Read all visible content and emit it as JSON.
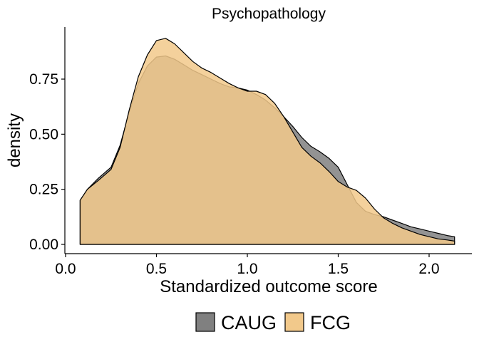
{
  "chart_data": {
    "type": "area",
    "title": "Psychopathology",
    "xlabel": "Standardized outcome score",
    "ylabel": "density",
    "xlim": [
      0,
      2.25
    ],
    "ylim": [
      0,
      0.95
    ],
    "x_ticks": [
      "0.0",
      "0.5",
      "1.0",
      "1.5",
      "2.0"
    ],
    "x_tick_values": [
      0,
      0.5,
      1.0,
      1.5,
      2.0
    ],
    "y_ticks": [
      "0.00",
      "0.25",
      "0.50",
      "0.75"
    ],
    "y_tick_values": [
      0,
      0.25,
      0.5,
      0.75
    ],
    "grid": false,
    "legend_position": "bottom",
    "series": [
      {
        "name": "CAUG",
        "color": "#808080",
        "points": [
          [
            0.08,
            0.2
          ],
          [
            0.12,
            0.25
          ],
          [
            0.18,
            0.3
          ],
          [
            0.25,
            0.35
          ],
          [
            0.3,
            0.45
          ],
          [
            0.35,
            0.6
          ],
          [
            0.4,
            0.73
          ],
          [
            0.45,
            0.81
          ],
          [
            0.5,
            0.85
          ],
          [
            0.55,
            0.855
          ],
          [
            0.6,
            0.84
          ],
          [
            0.65,
            0.815
          ],
          [
            0.7,
            0.79
          ],
          [
            0.75,
            0.77
          ],
          [
            0.8,
            0.75
          ],
          [
            0.85,
            0.73
          ],
          [
            0.9,
            0.715
          ],
          [
            0.95,
            0.71
          ],
          [
            1.0,
            0.7
          ],
          [
            1.05,
            0.68
          ],
          [
            1.1,
            0.655
          ],
          [
            1.15,
            0.62
          ],
          [
            1.2,
            0.58
          ],
          [
            1.25,
            0.535
          ],
          [
            1.3,
            0.485
          ],
          [
            1.35,
            0.445
          ],
          [
            1.4,
            0.42
          ],
          [
            1.45,
            0.39
          ],
          [
            1.5,
            0.35
          ],
          [
            1.55,
            0.27
          ],
          [
            1.6,
            0.19
          ],
          [
            1.65,
            0.15
          ],
          [
            1.7,
            0.135
          ],
          [
            1.75,
            0.125
          ],
          [
            1.8,
            0.11
          ],
          [
            1.85,
            0.095
          ],
          [
            1.9,
            0.08
          ],
          [
            1.95,
            0.07
          ],
          [
            2.0,
            0.06
          ],
          [
            2.05,
            0.05
          ],
          [
            2.1,
            0.04
          ],
          [
            2.14,
            0.035
          ]
        ]
      },
      {
        "name": "FCG",
        "color": "#F2C98B",
        "points": [
          [
            0.08,
            0.2
          ],
          [
            0.12,
            0.25
          ],
          [
            0.18,
            0.29
          ],
          [
            0.25,
            0.34
          ],
          [
            0.3,
            0.44
          ],
          [
            0.35,
            0.61
          ],
          [
            0.4,
            0.76
          ],
          [
            0.45,
            0.86
          ],
          [
            0.5,
            0.925
          ],
          [
            0.55,
            0.935
          ],
          [
            0.6,
            0.91
          ],
          [
            0.65,
            0.87
          ],
          [
            0.7,
            0.83
          ],
          [
            0.75,
            0.8
          ],
          [
            0.8,
            0.78
          ],
          [
            0.85,
            0.755
          ],
          [
            0.9,
            0.73
          ],
          [
            0.95,
            0.71
          ],
          [
            1.0,
            0.695
          ],
          [
            1.05,
            0.695
          ],
          [
            1.1,
            0.68
          ],
          [
            1.15,
            0.64
          ],
          [
            1.2,
            0.58
          ],
          [
            1.25,
            0.51
          ],
          [
            1.3,
            0.44
          ],
          [
            1.35,
            0.4
          ],
          [
            1.4,
            0.37
          ],
          [
            1.45,
            0.33
          ],
          [
            1.5,
            0.285
          ],
          [
            1.55,
            0.26
          ],
          [
            1.6,
            0.245
          ],
          [
            1.65,
            0.21
          ],
          [
            1.7,
            0.16
          ],
          [
            1.75,
            0.12
          ],
          [
            1.8,
            0.095
          ],
          [
            1.85,
            0.075
          ],
          [
            1.9,
            0.06
          ],
          [
            1.95,
            0.045
          ],
          [
            2.0,
            0.035
          ],
          [
            2.05,
            0.025
          ],
          [
            2.1,
            0.02
          ],
          [
            2.14,
            0.015
          ]
        ]
      }
    ]
  }
}
